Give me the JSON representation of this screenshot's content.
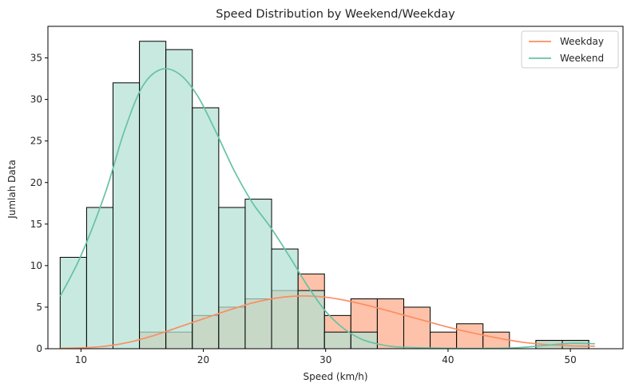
{
  "chart_data": {
    "type": "bar",
    "subtype": "histogram-with-kde",
    "title": "Speed Distribution by Weekend/Weekday",
    "xlabel": "Speed (km/h)",
    "ylabel": "Jumlah Data",
    "xlim": [
      7.3,
      54.3
    ],
    "ylim": [
      0,
      38.8
    ],
    "xticks": [
      10,
      20,
      30,
      40,
      50
    ],
    "yticks": [
      0,
      5,
      10,
      15,
      20,
      25,
      30,
      35
    ],
    "grid": false,
    "legend_position": "top-right",
    "bin_edges": [
      8.3,
      10.46,
      12.62,
      14.78,
      16.94,
      19.1,
      21.26,
      23.42,
      25.58,
      27.74,
      29.9,
      32.06,
      34.22,
      36.38,
      38.54,
      40.7,
      42.86,
      45.02,
      47.18,
      49.34,
      51.5
    ],
    "series": [
      {
        "name": "Weekday",
        "color": "#fc8d62",
        "fill": "#fdc2a9",
        "counts": [
          0,
          0,
          0,
          2,
          2,
          4,
          5,
          6,
          7,
          9,
          4,
          6,
          6,
          5,
          2,
          3,
          2,
          0,
          1,
          1
        ],
        "kde": [
          [
            8.3,
            0.05
          ],
          [
            10,
            0.1
          ],
          [
            12,
            0.3
          ],
          [
            14,
            0.8
          ],
          [
            16,
            1.6
          ],
          [
            18,
            2.6
          ],
          [
            20,
            3.6
          ],
          [
            22,
            4.6
          ],
          [
            24,
            5.5
          ],
          [
            26,
            6.1
          ],
          [
            28,
            6.35
          ],
          [
            30,
            6.2
          ],
          [
            32,
            5.7
          ],
          [
            34,
            5.0
          ],
          [
            36,
            4.2
          ],
          [
            38,
            3.4
          ],
          [
            40,
            2.6
          ],
          [
            42,
            1.9
          ],
          [
            44,
            1.3
          ],
          [
            46,
            0.8
          ],
          [
            48,
            0.5
          ],
          [
            50,
            0.35
          ],
          [
            52,
            0.3
          ]
        ]
      },
      {
        "name": "Weekend",
        "color": "#66c2a5",
        "fill": "#b3e0d2",
        "counts": [
          11,
          17,
          32,
          37,
          36,
          29,
          17,
          18,
          12,
          7,
          2,
          2,
          0,
          0,
          0,
          0,
          0,
          0,
          1,
          1
        ],
        "kde": [
          [
            8.3,
            6.3
          ],
          [
            10,
            11.2
          ],
          [
            12,
            18.8
          ],
          [
            13.5,
            26
          ],
          [
            15,
            31.5
          ],
          [
            16.5,
            33.6
          ],
          [
            18,
            33.1
          ],
          [
            19.5,
            30.5
          ],
          [
            21,
            26.2
          ],
          [
            22.5,
            21.5
          ],
          [
            24,
            17.6
          ],
          [
            25.5,
            14.6
          ],
          [
            27,
            11.2
          ],
          [
            28.5,
            7.6
          ],
          [
            30,
            4.5
          ],
          [
            31.5,
            2.4
          ],
          [
            33,
            1.1
          ],
          [
            34.5,
            0.5
          ],
          [
            36,
            0.2
          ],
          [
            40,
            0.05
          ],
          [
            44,
            0.05
          ],
          [
            46,
            0.15
          ],
          [
            48,
            0.4
          ],
          [
            50,
            0.65
          ],
          [
            52,
            0.6
          ]
        ]
      }
    ]
  }
}
